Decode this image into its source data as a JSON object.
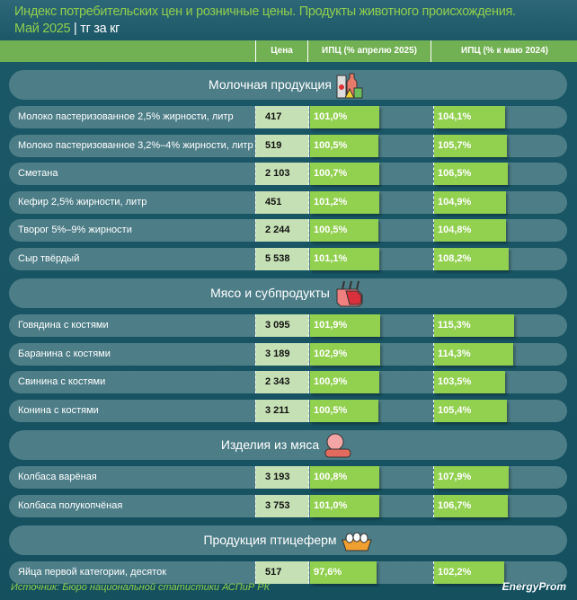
{
  "title": {
    "line1": "Индекс потребительских цен и розничные цены. Продукты животного происхождения.",
    "period": "Май 2025",
    "unit": "тг за кг"
  },
  "columns": {
    "price": "Цена",
    "cpi_month": "ИПЦ (% апрелю 2025)",
    "cpi_year": "ИПЦ (% к маю 2024)"
  },
  "sections": [
    {
      "name": "Молочная продукция",
      "icon": "dairy-icon",
      "rows": [
        {
          "label": "Молоко пастеризованное 2,5% жирности, литр",
          "price": "417",
          "cpi_month": 101.0,
          "cpi_year": 104.1
        },
        {
          "label": "Молоко пастеризованное 3,2%–4% жирности, литр",
          "price": "519",
          "cpi_month": 100.5,
          "cpi_year": 105.7
        },
        {
          "label": "Сметана",
          "price": "2 103",
          "cpi_month": 100.7,
          "cpi_year": 106.5
        },
        {
          "label": "Кефир 2,5% жирности, литр",
          "price": "451",
          "cpi_month": 101.2,
          "cpi_year": 104.9
        },
        {
          "label": "Творог 5%–9% жирности",
          "price": "2 244",
          "cpi_month": 100.5,
          "cpi_year": 104.8
        },
        {
          "label": "Сыр твёрдый",
          "price": "5 538",
          "cpi_month": 101.1,
          "cpi_year": 108.2
        }
      ]
    },
    {
      "name": "Мясо и субпродукты",
      "icon": "meat-icon",
      "rows": [
        {
          "label": "Говядина с костями",
          "price": "3 095",
          "cpi_month": 101.9,
          "cpi_year": 115.3
        },
        {
          "label": "Баранина с костями",
          "price": "3 189",
          "cpi_month": 102.9,
          "cpi_year": 114.3
        },
        {
          "label": "Свинина с костями",
          "price": "2 343",
          "cpi_month": 100.9,
          "cpi_year": 103.5
        },
        {
          "label": "Конина с костями",
          "price": "3 211",
          "cpi_month": 100.5,
          "cpi_year": 105.4
        }
      ]
    },
    {
      "name": "Изделия из мяса",
      "icon": "sausage-icon",
      "rows": [
        {
          "label": "Колбаса варёная",
          "price": "3 193",
          "cpi_month": 100.8,
          "cpi_year": 107.9
        },
        {
          "label": "Колбаса полукопчёная",
          "price": "3 753",
          "cpi_month": 101.0,
          "cpi_year": 106.7
        }
      ]
    },
    {
      "name": "Продукция птицеферм",
      "icon": "eggs-icon",
      "rows": [
        {
          "label": "Яйца первой категории, десяток",
          "price": "517",
          "cpi_month": 97.6,
          "cpi_year": 102.2
        }
      ]
    }
  ],
  "footer": {
    "source": "Источник: Бюро национальной статистики АСПиР РК",
    "logo": "EnergyProm"
  }
}
